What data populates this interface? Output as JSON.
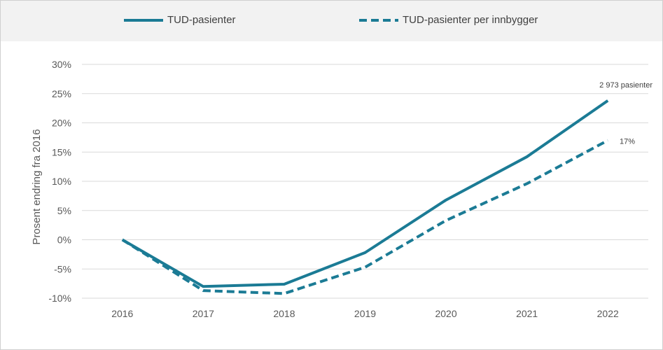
{
  "chart_data": {
    "type": "line",
    "title": "",
    "xlabel": "",
    "ylabel": "Prosent endring fra 2016",
    "categories": [
      "2016",
      "2017",
      "2018",
      "2019",
      "2020",
      "2021",
      "2022"
    ],
    "ylim": [
      -10,
      30
    ],
    "yticks": [
      30,
      25,
      20,
      15,
      10,
      5,
      0,
      -5,
      -10
    ],
    "ytick_labels": [
      "30%",
      "25%",
      "20%",
      "15%",
      "10%",
      "5%",
      "0%",
      "-5%",
      "-10%"
    ],
    "grid": true,
    "legend_position": "top",
    "series": [
      {
        "name": "TUD-pasienter",
        "style": "solid",
        "color": "#1b7b95",
        "values": [
          0,
          -8.0,
          -7.6,
          -2.2,
          6.8,
          14.2,
          23.8
        ],
        "end_label": "2 973 pasienter"
      },
      {
        "name": "TUD-pasienter per innbygger",
        "style": "dashed",
        "color": "#1b7b95",
        "values": [
          0,
          -8.7,
          -9.2,
          -4.7,
          3.3,
          9.6,
          17.0
        ],
        "end_label": "17%"
      }
    ]
  }
}
